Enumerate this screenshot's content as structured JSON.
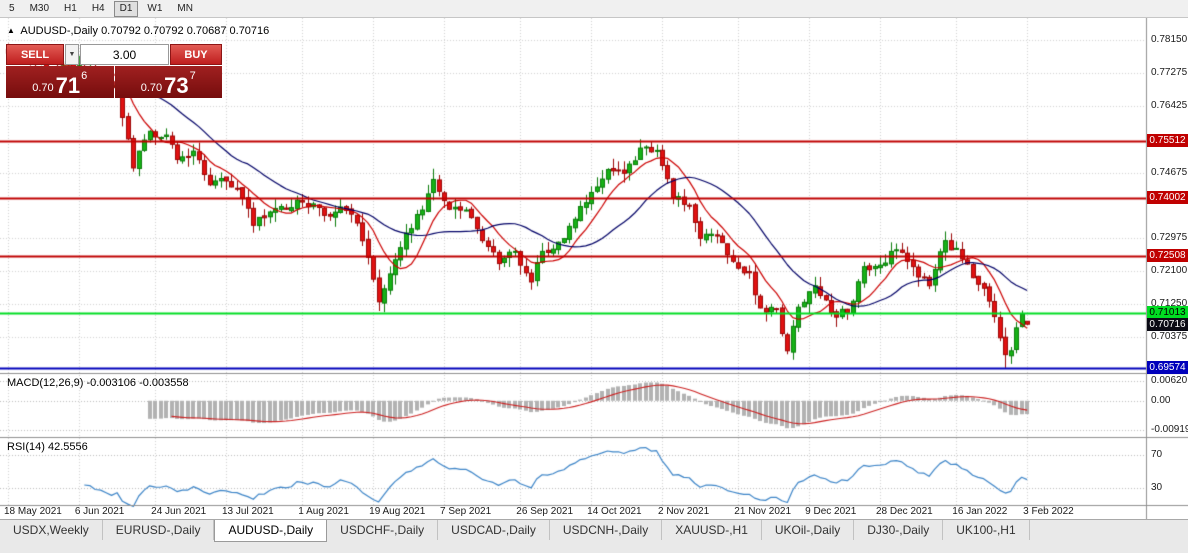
{
  "toolbar": {
    "timeframes": [
      "5",
      "M30",
      "H1",
      "H4",
      "D1",
      "W1",
      "MN"
    ],
    "active": "D1"
  },
  "chart": {
    "title": "AUDUSD-,Daily",
    "ohlc": "0.70792 0.70792 0.70687 0.70716"
  },
  "trade_panel": {
    "sell_label": "SELL",
    "buy_label": "BUY",
    "volume": "3.00",
    "sell_price": {
      "prefix": "0.70",
      "big": "71",
      "sup": "6"
    },
    "buy_price": {
      "prefix": "0.70",
      "big": "73",
      "sup": "7"
    }
  },
  "macd": {
    "label": "MACD(12,26,9) -0.003106 -0.003558",
    "axis": [
      {
        "value": 0.0062,
        "text": "0.00620"
      },
      {
        "value": 0,
        "text": "0.00"
      },
      {
        "value": -0.00919,
        "text": "-0.00919"
      }
    ]
  },
  "rsi": {
    "label": "RSI(14) 42.5556",
    "levels": [
      {
        "value": 70,
        "text": "70"
      },
      {
        "value": 30,
        "text": "30"
      }
    ]
  },
  "chart_data": {
    "type": "candlestick",
    "symbol": "AUDUSD-",
    "timeframe": "Daily",
    "bars": 188,
    "price_range": {
      "top": 0.7872,
      "bottom": 0.6944
    },
    "y_ticks": [
      {
        "value": 0.7815,
        "text": "0.78150"
      },
      {
        "value": 0.77275,
        "text": "0.77275"
      },
      {
        "value": 0.76425,
        "text": "0.76425"
      },
      {
        "value": 0.74675,
        "text": "0.74675"
      },
      {
        "value": 0.72975,
        "text": "0.72975"
      },
      {
        "value": 0.721,
        "text": "0.72100"
      },
      {
        "value": 0.7125,
        "text": "0.71250"
      },
      {
        "value": 0.70375,
        "text": "0.70375"
      }
    ],
    "hlines": [
      {
        "value": 0.75512,
        "label": "0.75512",
        "color": "#c00000",
        "text_color": "#ffffff"
      },
      {
        "value": 0.74002,
        "label": "0.74002",
        "color": "#c00000",
        "text_color": "#ffffff"
      },
      {
        "value": 0.72508,
        "label": "0.72508",
        "color": "#c00000",
        "text_color": "#ffffff"
      },
      {
        "value": 0.71013,
        "label": "0.71013",
        "color": "#00dd22",
        "text_color": "#000000"
      },
      {
        "value": 0.69574,
        "label": "0.69574",
        "color": "#0000bb",
        "text_color": "#ffffff"
      }
    ],
    "current_price": {
      "value": 0.70716,
      "label": "0.70716",
      "bg": "#0a0a14",
      "text_color": "#ffffff"
    },
    "last_bar_ohlc": [
      0.70792,
      0.70792,
      0.70687,
      0.70716
    ],
    "close_anchors": [
      [
        0,
        0.778
      ],
      [
        2,
        0.7768
      ],
      [
        5,
        0.7752
      ],
      [
        9,
        0.7738
      ],
      [
        11,
        0.7752
      ],
      [
        14,
        0.7742
      ],
      [
        18,
        0.7706
      ],
      [
        20,
        0.7695
      ],
      [
        21,
        0.7612
      ],
      [
        22,
        0.7556
      ],
      [
        23,
        0.748
      ],
      [
        26,
        0.7576
      ],
      [
        29,
        0.7566
      ],
      [
        31,
        0.7502
      ],
      [
        34,
        0.7524
      ],
      [
        37,
        0.7436
      ],
      [
        40,
        0.7446
      ],
      [
        43,
        0.74
      ],
      [
        45,
        0.733
      ],
      [
        48,
        0.7365
      ],
      [
        51,
        0.7372
      ],
      [
        53,
        0.7396
      ],
      [
        56,
        0.7386
      ],
      [
        58,
        0.7356
      ],
      [
        61,
        0.7378
      ],
      [
        64,
        0.7336
      ],
      [
        66,
        0.7246
      ],
      [
        68,
        0.713
      ],
      [
        71,
        0.724
      ],
      [
        73,
        0.731
      ],
      [
        76,
        0.737
      ],
      [
        78,
        0.745
      ],
      [
        81,
        0.7372
      ],
      [
        84,
        0.737
      ],
      [
        87,
        0.729
      ],
      [
        90,
        0.723
      ],
      [
        93,
        0.7262
      ],
      [
        96,
        0.7182
      ],
      [
        98,
        0.7262
      ],
      [
        101,
        0.7286
      ],
      [
        104,
        0.7346
      ],
      [
        107,
        0.7416
      ],
      [
        110,
        0.7476
      ],
      [
        113,
        0.7466
      ],
      [
        116,
        0.7532
      ],
      [
        118,
        0.7522
      ],
      [
        119,
        0.7526
      ],
      [
        121,
        0.7452
      ],
      [
        122,
        0.7402
      ],
      [
        125,
        0.7382
      ],
      [
        127,
        0.7296
      ],
      [
        130,
        0.7302
      ],
      [
        133,
        0.7236
      ],
      [
        136,
        0.7206
      ],
      [
        138,
        0.7114
      ],
      [
        141,
        0.7112
      ],
      [
        143,
        0.7002
      ],
      [
        145,
        0.7116
      ],
      [
        148,
        0.7172
      ],
      [
        151,
        0.7102
      ],
      [
        154,
        0.7102
      ],
      [
        157,
        0.7222
      ],
      [
        160,
        0.7226
      ],
      [
        163,
        0.7266
      ],
      [
        166,
        0.7222
      ],
      [
        169,
        0.7172
      ],
      [
        172,
        0.729
      ],
      [
        175,
        0.7242
      ],
      [
        178,
        0.7176
      ],
      [
        180,
        0.7132
      ],
      [
        182,
        0.7036
      ],
      [
        183,
        0.6992
      ],
      [
        184,
        0.7002
      ],
      [
        185,
        0.7062
      ],
      [
        186,
        0.7098
      ],
      [
        187,
        0.70716
      ]
    ],
    "high_anchors": [
      [
        0,
        0.7805
      ],
      [
        78,
        0.7478
      ],
      [
        116,
        0.7555
      ],
      [
        172,
        0.7314
      ]
    ],
    "low_anchors": [
      [
        68,
        0.7106
      ],
      [
        143,
        0.6993
      ],
      [
        183,
        0.69574
      ]
    ],
    "x_ticks": [
      {
        "bar": 0,
        "label": "18 May 2021"
      },
      {
        "bar": 13,
        "label": "6 Jun 2021"
      },
      {
        "bar": 27,
        "label": "24 Jun 2021"
      },
      {
        "bar": 40,
        "label": "13 Jul 2021"
      },
      {
        "bar": 54,
        "label": "1 Aug 2021"
      },
      {
        "bar": 67,
        "label": "19 Aug 2021"
      },
      {
        "bar": 80,
        "label": "7 Sep 2021"
      },
      {
        "bar": 94,
        "label": "26 Sep 2021"
      },
      {
        "bar": 107,
        "label": "14 Oct 2021"
      },
      {
        "bar": 120,
        "label": "2 Nov 2021"
      },
      {
        "bar": 134,
        "label": "21 Nov 2021"
      },
      {
        "bar": 147,
        "label": "9 Dec 2021"
      },
      {
        "bar": 160,
        "label": "28 Dec 2021"
      },
      {
        "bar": 174,
        "label": "16 Jan 2022"
      },
      {
        "bar": 187,
        "label": "3 Feb 2022"
      }
    ]
  },
  "colors": {
    "bull": "#17b117",
    "bull_border": "#0a7d0a",
    "bear": "#e01212",
    "bear_border": "#9c0606",
    "ma_fast": "#cc0000",
    "ma_slow": "#000066",
    "macd_hist": "#b2b2b2",
    "macd_signal": "#cc2222",
    "rsi_line": "#3d85c8",
    "grid": "#d2d2d2",
    "separator": "#909090"
  },
  "tabs": [
    {
      "label": "USDX,Weekly",
      "active": false
    },
    {
      "label": "EURUSD-,Daily",
      "active": false
    },
    {
      "label": "AUDUSD-,Daily",
      "active": true
    },
    {
      "label": "USDCHF-,Daily",
      "active": false
    },
    {
      "label": "USDCAD-,Daily",
      "active": false
    },
    {
      "label": "USDCNH-,Daily",
      "active": false
    },
    {
      "label": "XAUUSD-,H1",
      "active": false
    },
    {
      "label": "UKOil-,Daily",
      "active": false
    },
    {
      "label": "DJ30-,Daily",
      "active": false
    },
    {
      "label": "UK100-,H1",
      "active": false
    }
  ]
}
